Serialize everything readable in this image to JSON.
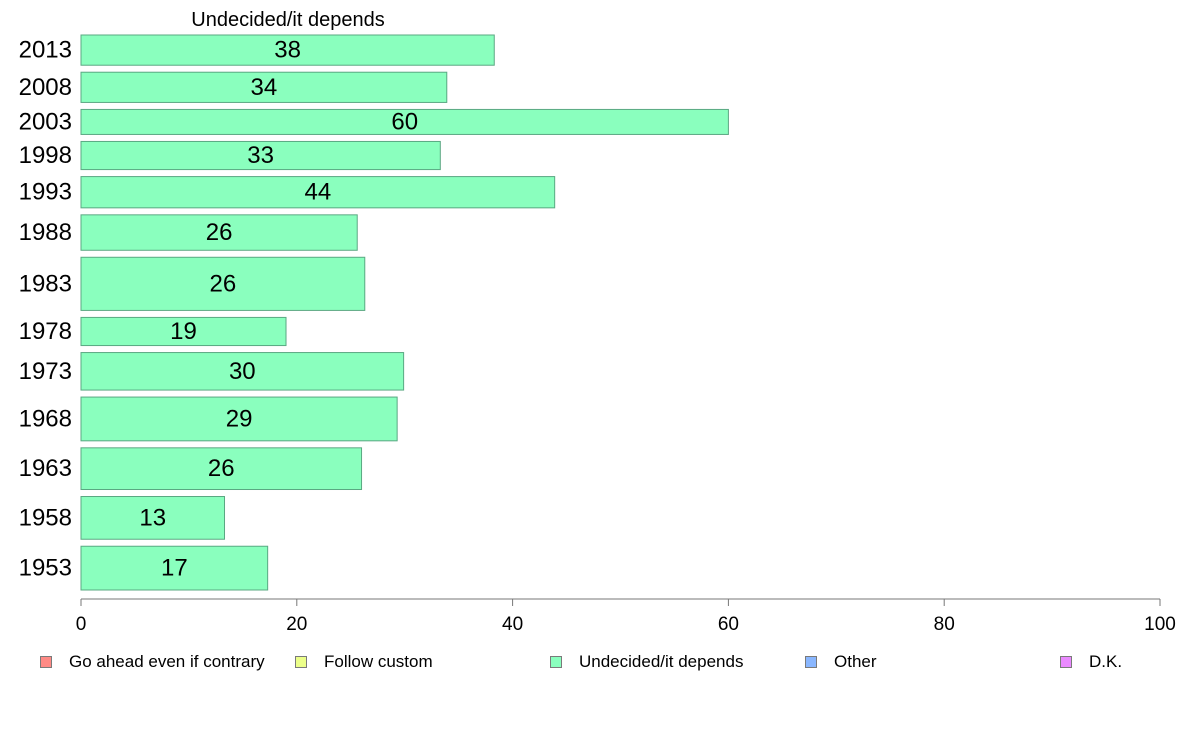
{
  "chart_data": {
    "type": "bar",
    "orientation": "horizontal",
    "title": "Undecided/it depends",
    "categories": [
      "2013",
      "2008",
      "2003",
      "1998",
      "1993",
      "1988",
      "1983",
      "1978",
      "1973",
      "1968",
      "1963",
      "1958",
      "1953"
    ],
    "values": [
      38,
      34,
      60,
      33,
      44,
      26,
      26,
      19,
      30,
      29,
      26,
      13,
      17
    ],
    "display_values": [
      38.3,
      33.9,
      60.0,
      33.3,
      43.9,
      25.6,
      26.3,
      19.0,
      29.9,
      29.3,
      26.0,
      13.3,
      17.3
    ],
    "relative_row_weights": [
      29,
      29,
      24,
      27,
      30,
      34,
      51,
      27,
      36,
      42,
      40,
      41,
      42
    ],
    "xlim": [
      0,
      100
    ],
    "x_ticks": [
      "0",
      "20",
      "40",
      "60",
      "80",
      "100"
    ],
    "bar_color": "#8affbe",
    "bar_edge_color": "#5aa882",
    "grid": false,
    "legend_position": "bottom",
    "legend": [
      {
        "name": "Go ahead even if contrary",
        "color": "#ff8a85"
      },
      {
        "name": "Follow custom",
        "color": "#ecff8a"
      },
      {
        "name": "Undecided/it depends",
        "color": "#8affbe"
      },
      {
        "name": "Other",
        "color": "#8ab7ff"
      },
      {
        "name": "D.K.",
        "color": "#ea8aff"
      }
    ]
  }
}
